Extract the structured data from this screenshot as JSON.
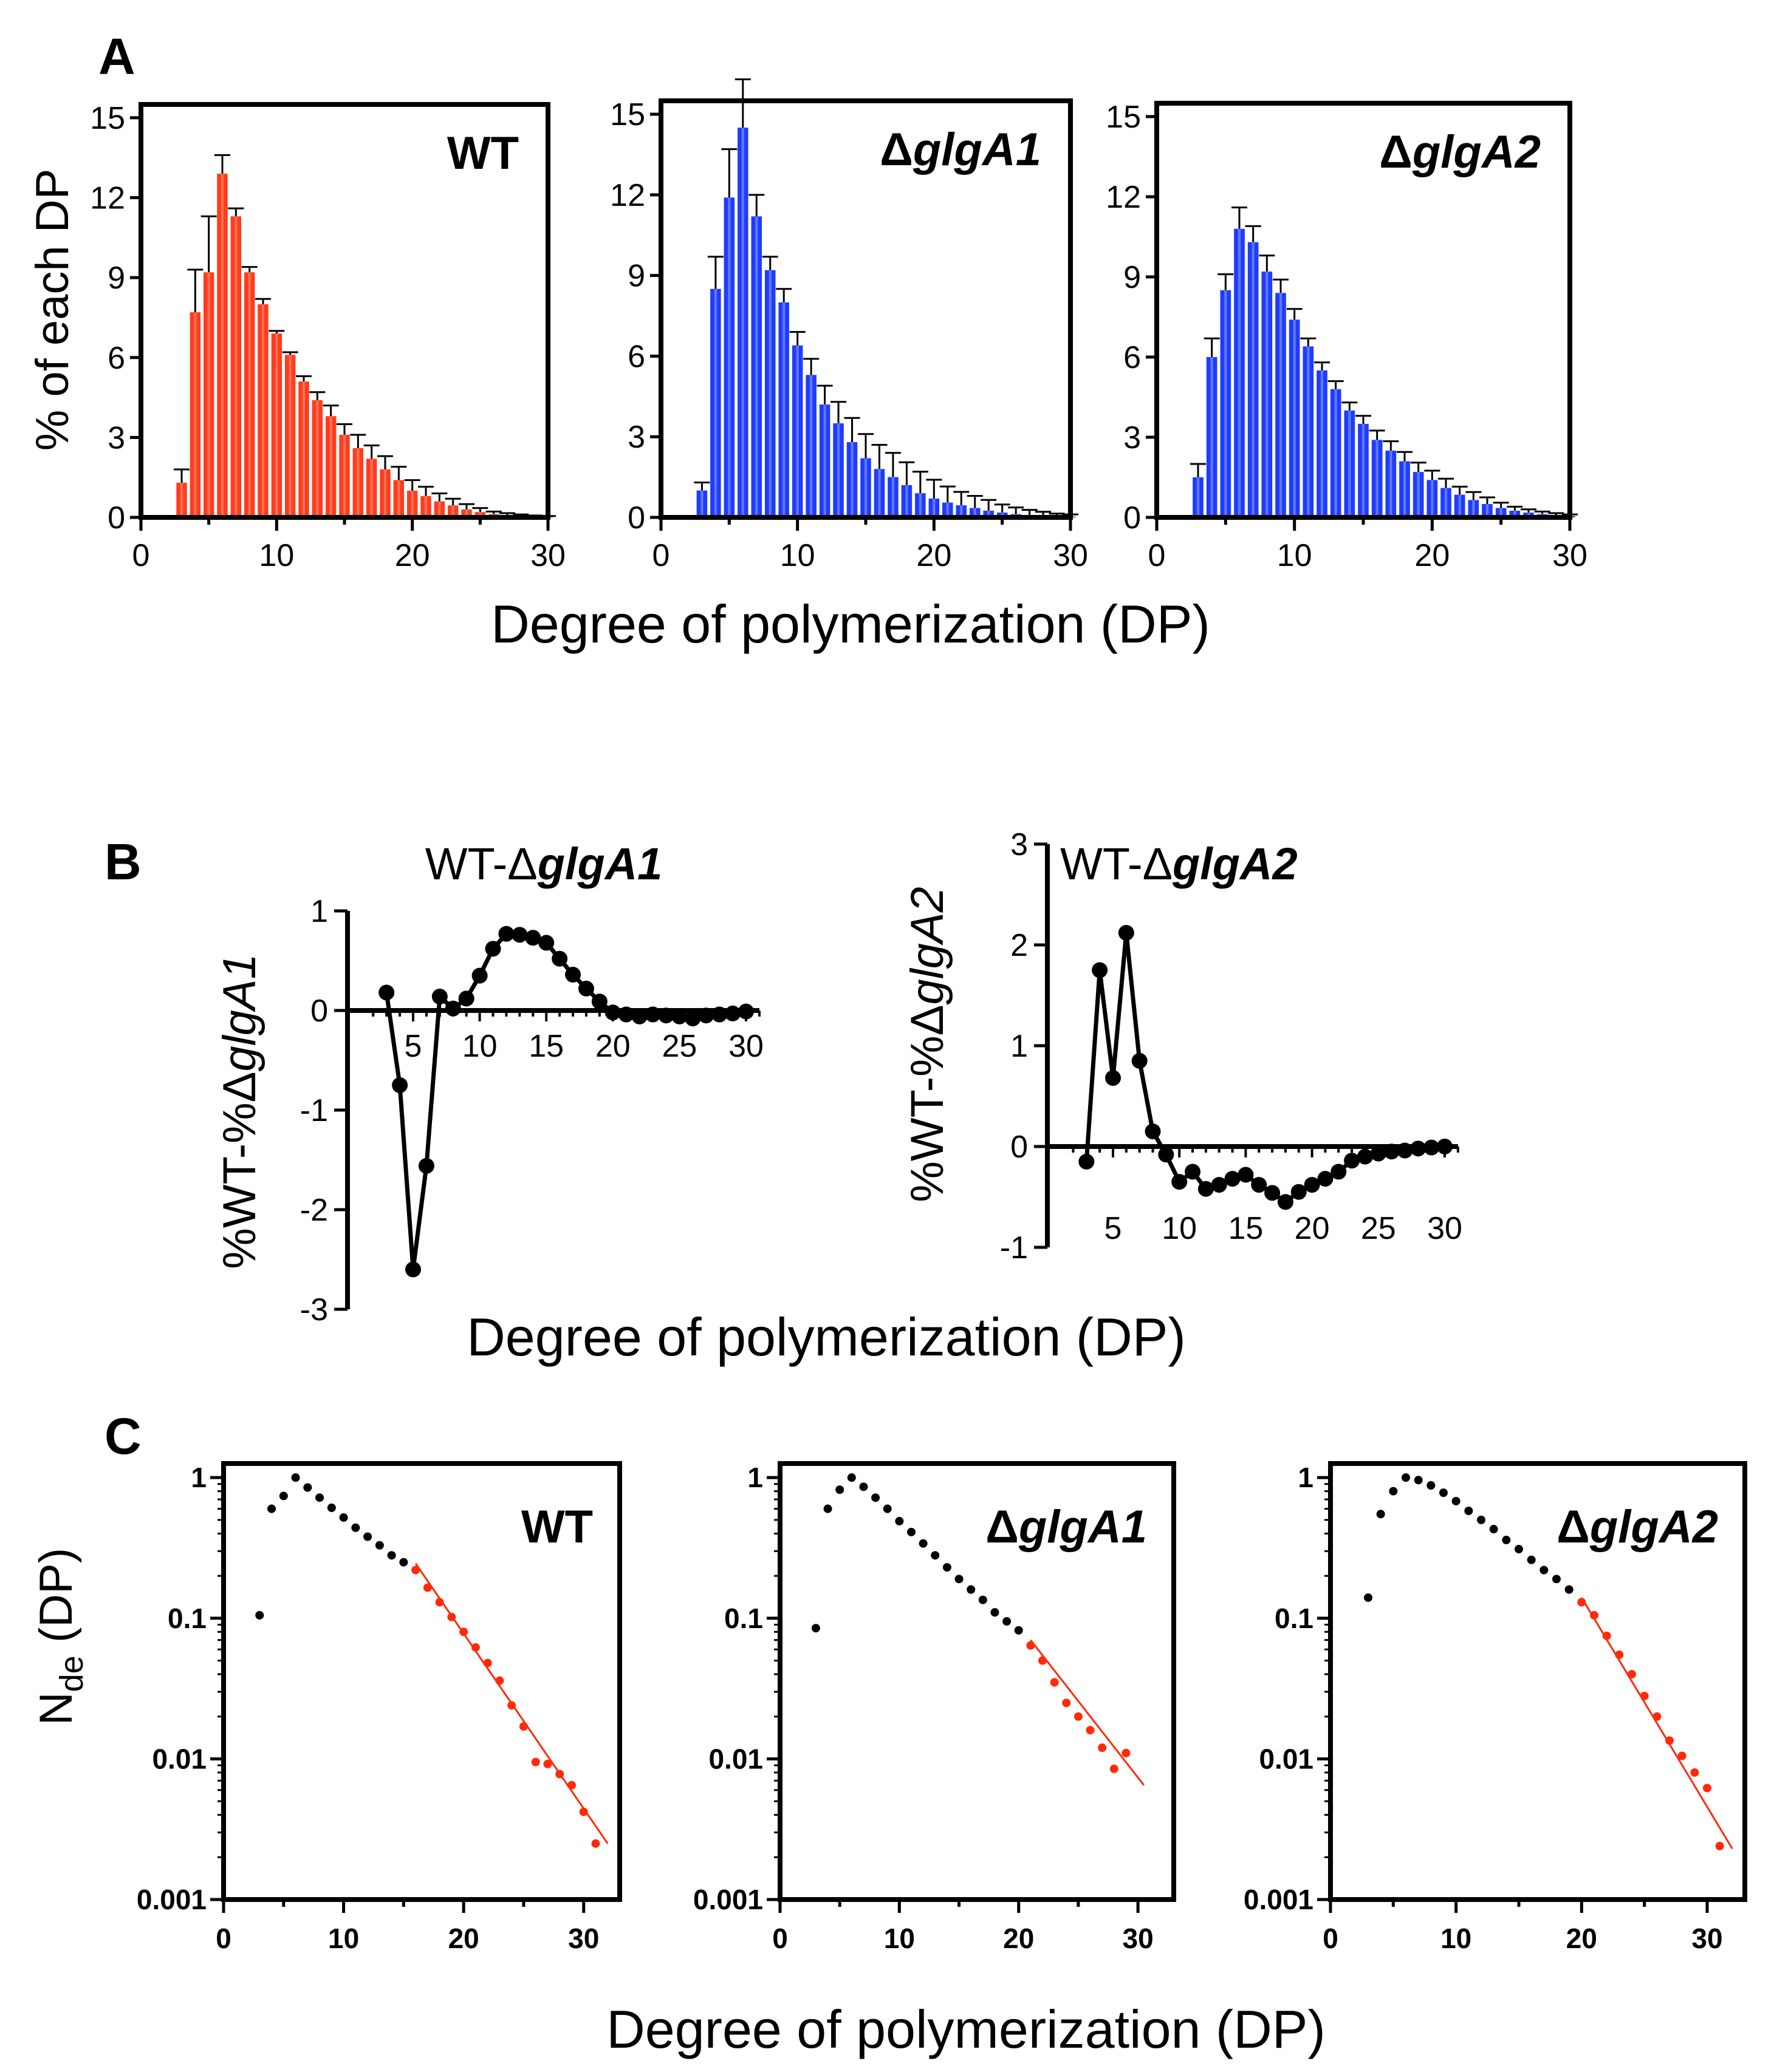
{
  "colors": {
    "wt_bar": "#FF3C1E",
    "wt_bar_light": "#FF9A80",
    "mutant_bar": "#1E3CFF",
    "mutant_bar_light": "#9AA8FF",
    "fit_line": "#FF2A0A",
    "ink": "#000000"
  },
  "panel_letters": [
    "A",
    "B",
    "C"
  ],
  "panel_a": {
    "ylabel": "% of each DP",
    "xlabel": "Degree of polymerization (DP)",
    "y_ticks": [
      "0",
      "3",
      "6",
      "9",
      "12",
      "15"
    ],
    "x_ticks": [
      "0",
      "10",
      "20",
      "30"
    ]
  },
  "panel_b": {
    "xlabel": "Degree of polymerization (DP)"
  },
  "panel_c": {
    "ylabel_main": "N",
    "ylabel_sub": "de",
    "ylabel_tail": " (DP)",
    "xlabel": "Degree of polymerization (DP)",
    "y_ticks": [
      "1",
      "0.1",
      "0.01",
      "0.001"
    ],
    "x_ticks": [
      "0",
      "10",
      "20",
      "30"
    ]
  },
  "chart_data": [
    {
      "id": "A1",
      "type": "bar",
      "title": "WT",
      "title_prefix": "",
      "title_gene": "WT",
      "color": "wt",
      "xlim": [
        0,
        30
      ],
      "ylim": [
        0,
        15.5
      ],
      "x": [
        3,
        4,
        5,
        6,
        7,
        8,
        9,
        10,
        11,
        12,
        13,
        14,
        15,
        16,
        17,
        18,
        19,
        20,
        21,
        22,
        23,
        24,
        25,
        26,
        27,
        28,
        29,
        30
      ],
      "values": [
        1.3,
        7.7,
        9.2,
        12.9,
        11.3,
        9.2,
        8.0,
        6.9,
        6.1,
        5.1,
        4.4,
        3.8,
        3.1,
        2.6,
        2.2,
        1.8,
        1.4,
        1.0,
        0.8,
        0.6,
        0.45,
        0.3,
        0.2,
        0.12,
        0.08,
        0.05,
        0.03,
        0.02
      ],
      "errors": [
        0.5,
        1.6,
        2.1,
        0.7,
        0.3,
        0.2,
        0.2,
        0.1,
        0.1,
        0.2,
        0.3,
        0.4,
        0.4,
        0.5,
        0.5,
        0.5,
        0.5,
        0.4,
        0.35,
        0.3,
        0.25,
        0.2,
        0.15,
        0.1,
        0.08,
        0.06,
        0.04,
        0.03
      ]
    },
    {
      "id": "A2",
      "type": "bar",
      "title": "ΔglgA1",
      "title_prefix": "Δ",
      "title_gene": "glgA1",
      "color": "mutant",
      "xlim": [
        0,
        30
      ],
      "ylim": [
        0,
        15.5
      ],
      "x": [
        3,
        4,
        5,
        6,
        7,
        8,
        9,
        10,
        11,
        12,
        13,
        14,
        15,
        16,
        17,
        18,
        19,
        20,
        21,
        22,
        23,
        24,
        25,
        26,
        27,
        28,
        29,
        30
      ],
      "values": [
        1.0,
        8.5,
        11.9,
        14.5,
        11.2,
        9.2,
        8.0,
        6.4,
        5.3,
        4.2,
        3.5,
        2.8,
        2.2,
        1.8,
        1.5,
        1.2,
        0.9,
        0.7,
        0.55,
        0.45,
        0.35,
        0.25,
        0.18,
        0.12,
        0.08,
        0.06,
        0.04,
        0.03
      ],
      "errors": [
        0.3,
        1.2,
        1.8,
        1.8,
        0.8,
        0.5,
        0.5,
        0.5,
        0.6,
        0.7,
        0.8,
        0.9,
        0.9,
        0.9,
        0.9,
        0.85,
        0.8,
        0.7,
        0.6,
        0.5,
        0.45,
        0.4,
        0.3,
        0.25,
        0.2,
        0.15,
        0.1,
        0.08
      ]
    },
    {
      "id": "A3",
      "type": "bar",
      "title": "ΔglgA2",
      "title_prefix": "Δ",
      "title_gene": "glgA2",
      "color": "mutant",
      "xlim": [
        0,
        30
      ],
      "ylim": [
        0,
        15.5
      ],
      "x": [
        3,
        4,
        5,
        6,
        7,
        8,
        9,
        10,
        11,
        12,
        13,
        14,
        15,
        16,
        17,
        18,
        19,
        20,
        21,
        22,
        23,
        24,
        25,
        26,
        27,
        28,
        29,
        30
      ],
      "values": [
        1.5,
        6.0,
        8.5,
        10.8,
        10.3,
        9.2,
        8.4,
        7.4,
        6.4,
        5.5,
        4.8,
        4.0,
        3.5,
        2.9,
        2.5,
        2.1,
        1.7,
        1.4,
        1.1,
        0.85,
        0.65,
        0.5,
        0.35,
        0.25,
        0.18,
        0.12,
        0.08,
        0.05
      ],
      "errors": [
        0.5,
        0.7,
        0.6,
        0.8,
        0.6,
        0.6,
        0.5,
        0.4,
        0.3,
        0.3,
        0.3,
        0.3,
        0.3,
        0.35,
        0.35,
        0.35,
        0.35,
        0.35,
        0.35,
        0.3,
        0.3,
        0.25,
        0.2,
        0.15,
        0.12,
        0.1,
        0.08,
        0.06
      ]
    },
    {
      "id": "B1",
      "type": "line",
      "title": "WT-ΔglgA1",
      "title_prefix": "WT-Δ",
      "title_gene": "glgA1",
      "ylabel_prefix": "%WT-%Δ",
      "ylabel_gene": "glgA1",
      "xlim": [
        0,
        31
      ],
      "ylim": [
        -3,
        1
      ],
      "x_ticks": [
        "5",
        "10",
        "15",
        "20",
        "25",
        "30"
      ],
      "y_ticks": [
        "-3",
        "-2",
        "-1",
        "0",
        "1"
      ],
      "x": [
        3,
        4,
        5,
        6,
        7,
        8,
        9,
        10,
        11,
        12,
        13,
        14,
        15,
        16,
        17,
        18,
        19,
        20,
        21,
        22,
        23,
        24,
        25,
        26,
        27,
        28,
        29,
        30
      ],
      "y": [
        0.18,
        -0.75,
        -2.6,
        -1.56,
        0.14,
        0.02,
        0.12,
        0.35,
        0.62,
        0.77,
        0.76,
        0.73,
        0.68,
        0.52,
        0.36,
        0.22,
        0.09,
        -0.02,
        -0.04,
        -0.06,
        -0.04,
        -0.05,
        -0.06,
        -0.08,
        -0.05,
        -0.04,
        -0.03,
        -0.01
      ]
    },
    {
      "id": "B2",
      "type": "line",
      "title": "WT-ΔglgA2",
      "title_prefix": "WT-Δ",
      "title_gene": "glgA2",
      "ylabel_prefix": "%WT-%Δ",
      "ylabel_gene": "glgA2",
      "xlim": [
        0,
        31
      ],
      "ylim": [
        -1,
        3
      ],
      "x_ticks": [
        "5",
        "10",
        "15",
        "20",
        "25",
        "30"
      ],
      "y_ticks": [
        "-1",
        "0",
        "1",
        "2",
        "3"
      ],
      "x": [
        3,
        4,
        5,
        6,
        7,
        8,
        9,
        10,
        11,
        12,
        13,
        14,
        15,
        16,
        17,
        18,
        19,
        20,
        21,
        22,
        23,
        24,
        25,
        26,
        27,
        28,
        29,
        30
      ],
      "y": [
        -0.15,
        1.75,
        0.68,
        2.12,
        0.85,
        0.15,
        -0.08,
        -0.35,
        -0.25,
        -0.42,
        -0.38,
        -0.32,
        -0.28,
        -0.38,
        -0.46,
        -0.55,
        -0.45,
        -0.38,
        -0.32,
        -0.25,
        -0.14,
        -0.1,
        -0.07,
        -0.05,
        -0.04,
        -0.02,
        -0.01,
        0.0
      ]
    },
    {
      "id": "C1",
      "type": "scatter",
      "title": "WT",
      "title_prefix": "",
      "title_gene": "WT",
      "xlim": [
        0,
        33
      ],
      "ylim_log10": [
        -3,
        0.1
      ],
      "x": [
        3,
        4,
        5,
        6,
        7,
        8,
        9,
        10,
        11,
        12,
        13,
        14,
        15
      ],
      "y": [
        0.105,
        0.6,
        0.74,
        1.0,
        0.85,
        0.72,
        0.61,
        0.52,
        0.44,
        0.38,
        0.33,
        0.28,
        0.25
      ],
      "fit_x": [
        16,
        17,
        18,
        19,
        20,
        21,
        22,
        23,
        24,
        25,
        26,
        27,
        28,
        29,
        30,
        31
      ],
      "fit_y": [
        0.22,
        0.165,
        0.13,
        0.102,
        0.08,
        0.062,
        0.048,
        0.036,
        0.024,
        0.017,
        0.0095,
        0.0092,
        0.0078,
        0.0065,
        0.0042,
        0.0025
      ],
      "fit_line": [
        [
          16,
          0.245
        ],
        [
          32,
          0.0025
        ]
      ]
    },
    {
      "id": "C2",
      "type": "scatter",
      "title": "ΔglgA1",
      "title_prefix": "Δ",
      "title_gene": "glgA1",
      "xlim": [
        0,
        33
      ],
      "ylim_log10": [
        -3,
        0.1
      ],
      "x": [
        3,
        4,
        5,
        6,
        7,
        8,
        9,
        10,
        11,
        12,
        13,
        14,
        15,
        16,
        17,
        18,
        19,
        20
      ],
      "y": [
        0.085,
        0.6,
        0.82,
        1.0,
        0.86,
        0.72,
        0.6,
        0.49,
        0.41,
        0.34,
        0.28,
        0.23,
        0.19,
        0.16,
        0.135,
        0.11,
        0.095,
        0.082
      ],
      "fit_x": [
        21,
        22,
        23,
        24,
        25,
        26,
        27,
        28,
        29
      ],
      "fit_y": [
        0.064,
        0.05,
        0.035,
        0.025,
        0.02,
        0.016,
        0.012,
        0.0085,
        0.011
      ],
      "fit_line": [
        [
          21,
          0.07
        ],
        [
          30.5,
          0.0065
        ]
      ]
    },
    {
      "id": "C3",
      "type": "scatter",
      "title": "ΔglgA2",
      "title_prefix": "Δ",
      "title_gene": "glgA2",
      "xlim": [
        0,
        33
      ],
      "ylim_log10": [
        -3,
        0.1
      ],
      "x": [
        3,
        4,
        5,
        6,
        7,
        8,
        9,
        10,
        11,
        12,
        13,
        14,
        15,
        16,
        17,
        18,
        19
      ],
      "y": [
        0.14,
        0.55,
        0.8,
        1.0,
        0.96,
        0.88,
        0.78,
        0.68,
        0.58,
        0.5,
        0.43,
        0.36,
        0.31,
        0.26,
        0.22,
        0.19,
        0.16
      ],
      "fit_x": [
        20,
        21,
        22,
        23,
        24,
        25,
        26,
        27,
        28,
        29,
        30,
        31
      ],
      "fit_y": [
        0.13,
        0.105,
        0.075,
        0.055,
        0.04,
        0.028,
        0.02,
        0.0135,
        0.0105,
        0.008,
        0.0062,
        0.0024
      ],
      "fit_line": [
        [
          20,
          0.14
        ],
        [
          32,
          0.0023
        ]
      ]
    }
  ]
}
